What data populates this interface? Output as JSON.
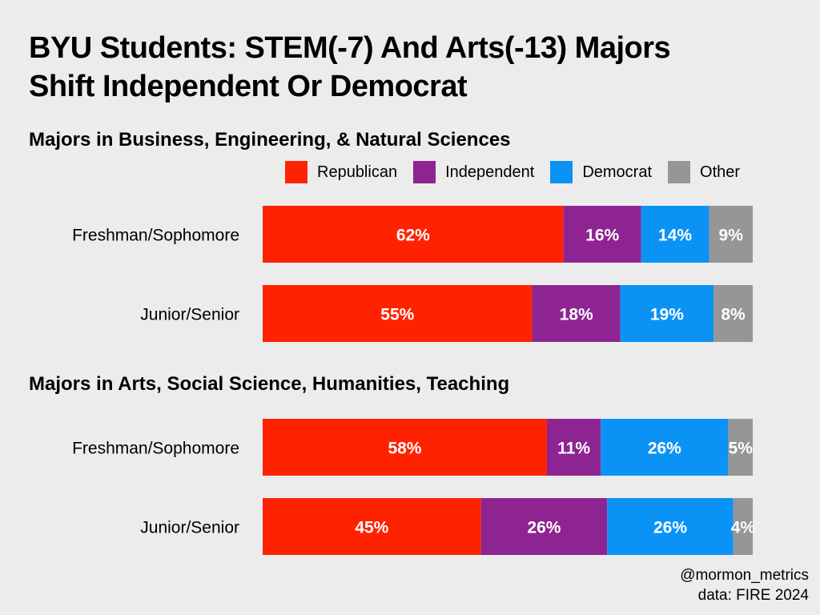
{
  "title_line1": "BYU Students: STEM(-7) And Arts(-13) Majors",
  "title_line2": "Shift Independent Or Democrat",
  "legend": [
    {
      "label": "Republican",
      "color": "#ff2200"
    },
    {
      "label": "Independent",
      "color": "#8e2491"
    },
    {
      "label": "Democrat",
      "color": "#0a93f5"
    },
    {
      "label": "Other",
      "color": "#969696"
    }
  ],
  "footer": {
    "handle": "@mormon_metrics",
    "source": "data: FIRE 2024"
  },
  "chart_data": [
    {
      "type": "bar",
      "orientation": "horizontal",
      "stacked": true,
      "title": "Majors in Business, Engineering, & Natural Sciences",
      "categories": [
        "Freshman/Sophomore",
        "Junior/Senior"
      ],
      "series": [
        {
          "name": "Republican",
          "values": [
            62,
            55
          ]
        },
        {
          "name": "Independent",
          "values": [
            16,
            18
          ]
        },
        {
          "name": "Democrat",
          "values": [
            14,
            19
          ]
        },
        {
          "name": "Other",
          "values": [
            9,
            8
          ]
        }
      ],
      "value_labels": [
        [
          "62%",
          "16%",
          "14%",
          "9%"
        ],
        [
          "55%",
          "18%",
          "19%",
          "8%"
        ]
      ]
    },
    {
      "type": "bar",
      "orientation": "horizontal",
      "stacked": true,
      "title": "Majors in Arts, Social Science, Humanities, Teaching",
      "categories": [
        "Freshman/Sophomore",
        "Junior/Senior"
      ],
      "series": [
        {
          "name": "Republican",
          "values": [
            58,
            45
          ]
        },
        {
          "name": "Independent",
          "values": [
            11,
            26
          ]
        },
        {
          "name": "Democrat",
          "values": [
            26,
            26
          ]
        },
        {
          "name": "Other",
          "values": [
            5,
            4
          ]
        }
      ],
      "value_labels": [
        [
          "58%",
          "11%",
          "26%",
          "5%"
        ],
        [
          "45%",
          "26%",
          "26%",
          "4%"
        ]
      ]
    }
  ]
}
